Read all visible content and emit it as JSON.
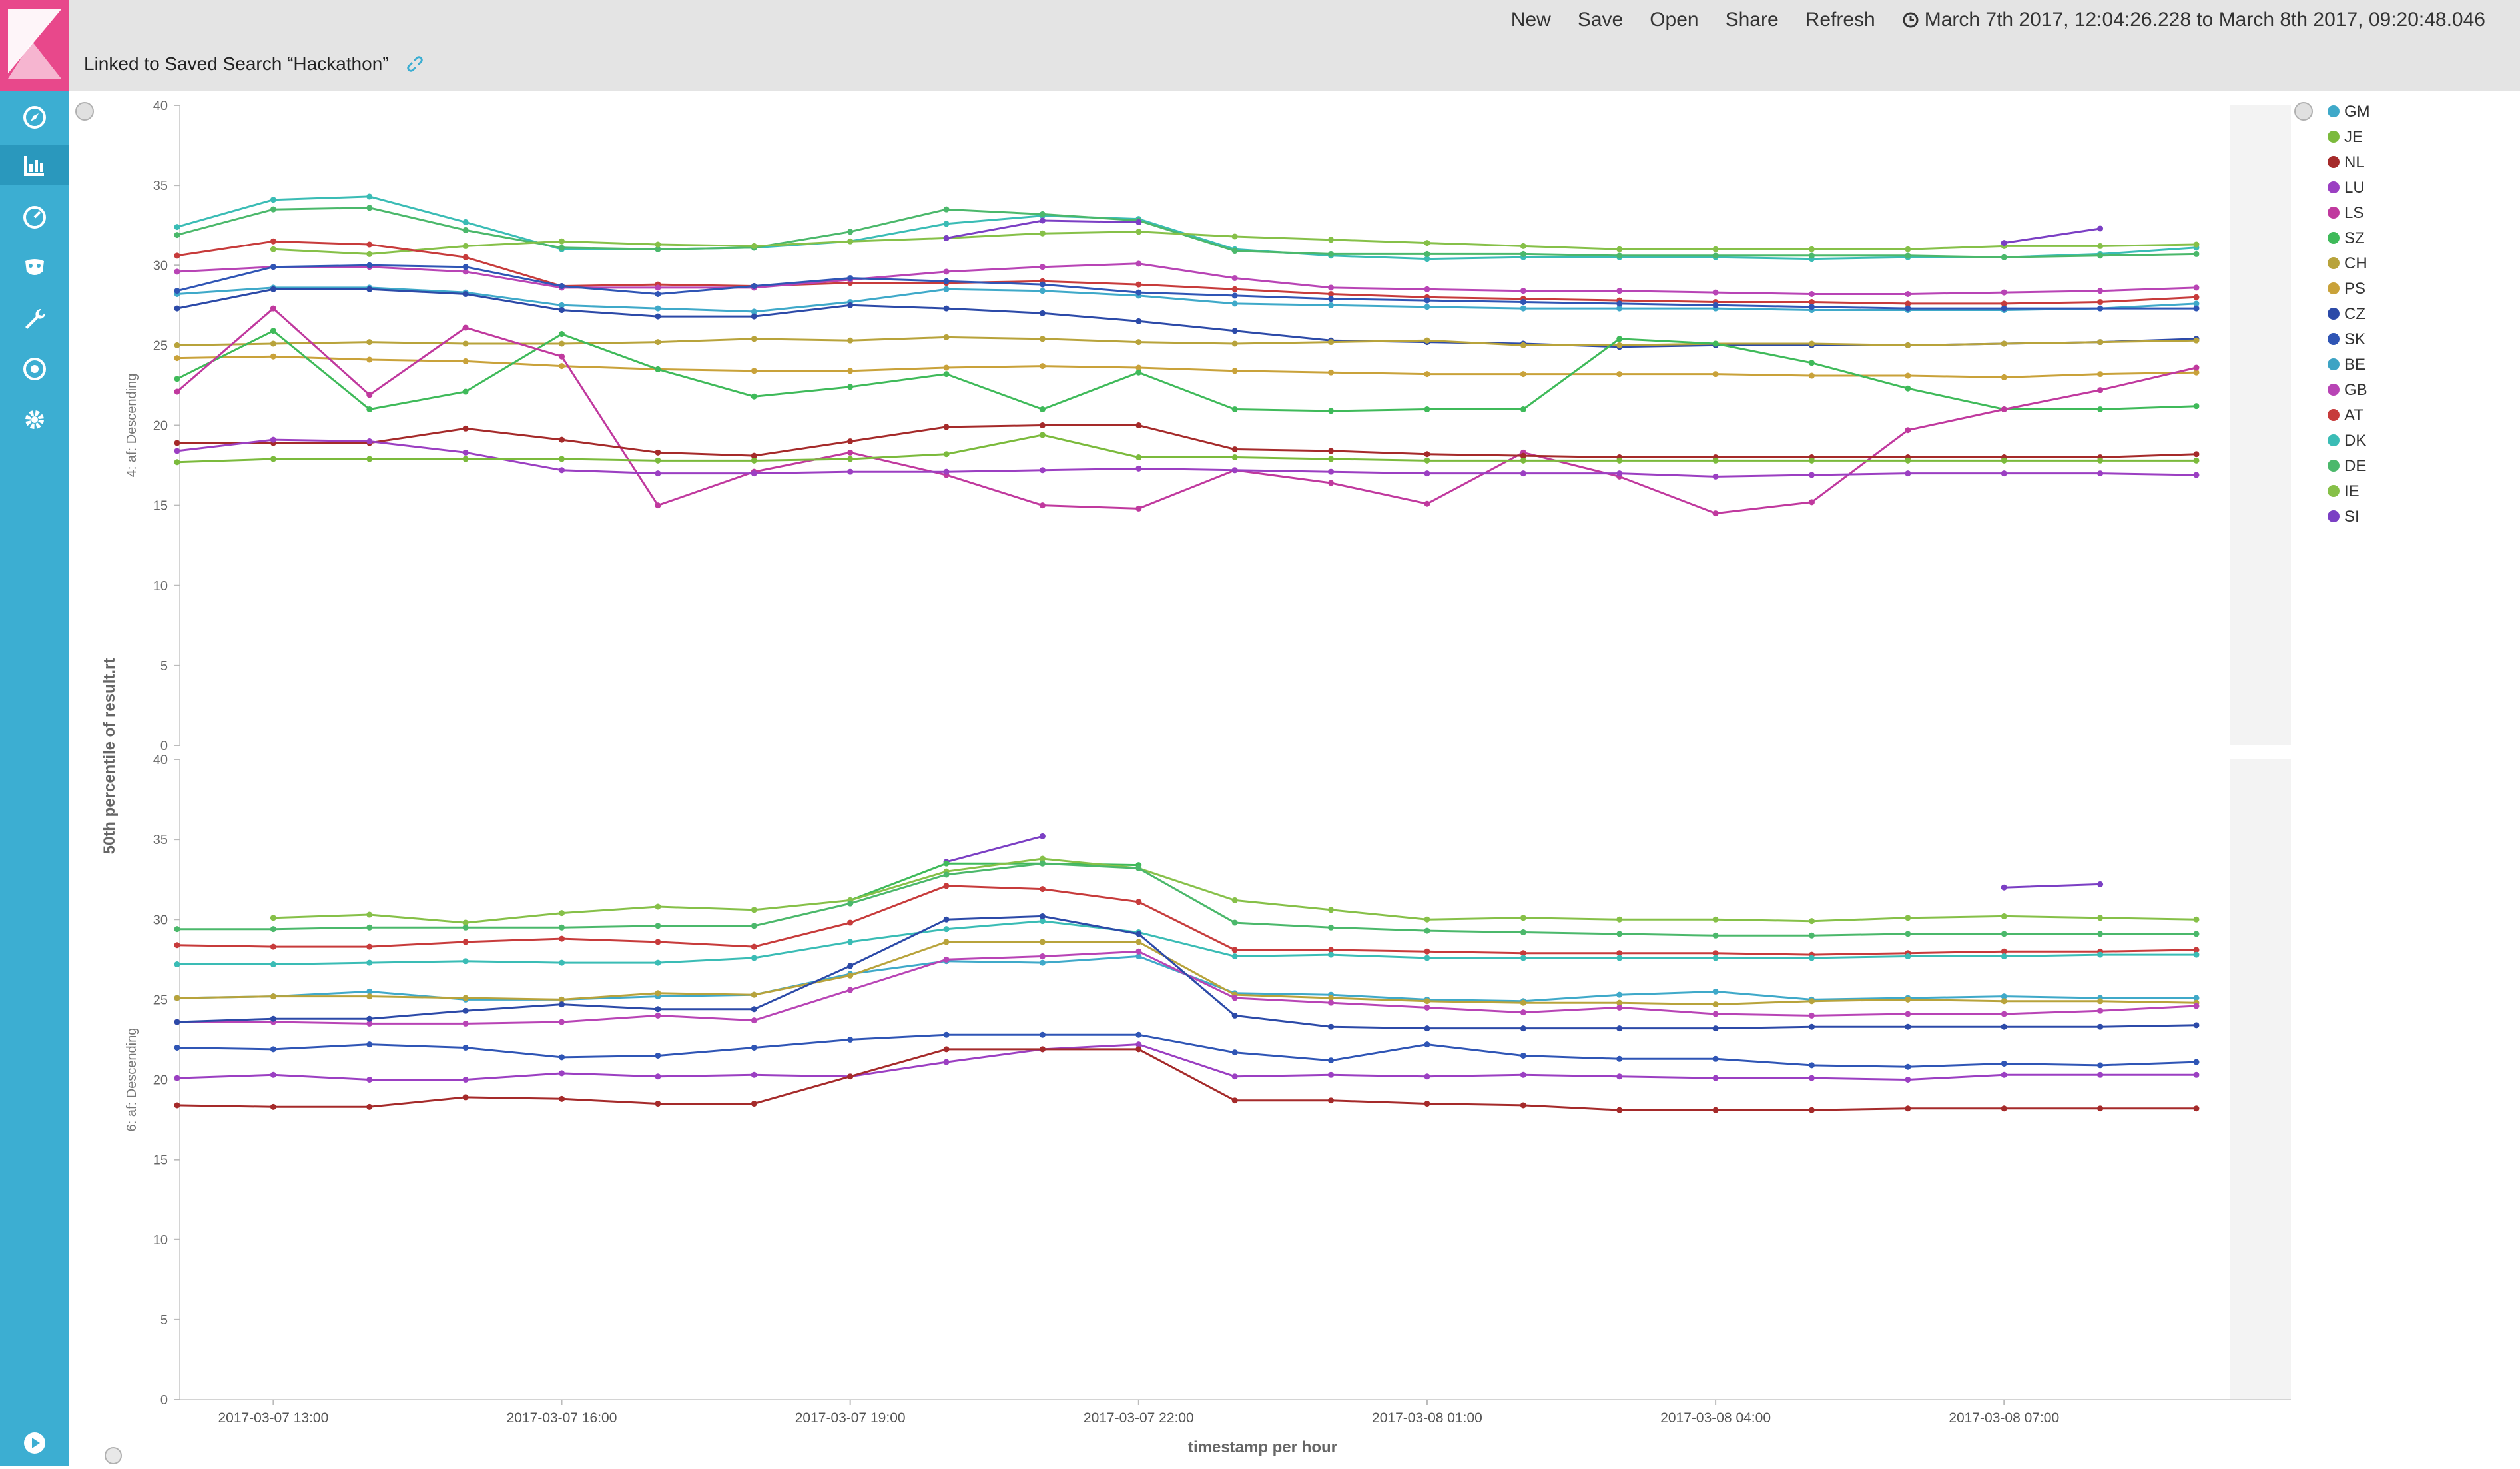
{
  "app": {
    "logo_icon": "kibana-logo-icon"
  },
  "nav": [
    {
      "name": "discover",
      "icon": "compass-icon"
    },
    {
      "name": "visualize",
      "icon": "bar-chart-icon",
      "active": true
    },
    {
      "name": "dashboard",
      "icon": "gauge-icon"
    },
    {
      "name": "timelion",
      "icon": "mask-icon"
    },
    {
      "name": "dev-tools",
      "icon": "wrench-icon"
    },
    {
      "name": "monitoring",
      "icon": "eye-icon"
    },
    {
      "name": "management",
      "icon": "gear-icon"
    }
  ],
  "top_menu": {
    "new": "New",
    "save": "Save",
    "open": "Open",
    "share": "Share",
    "refresh": "Refresh",
    "time_range": "March 7th 2017, 12:04:26.228 to March 8th 2017, 09:20:48.046"
  },
  "linked_search": {
    "text": "Linked to Saved Search “Hackathon”",
    "unlink_icon": "unlink-icon"
  },
  "chart_data": {
    "type": "line",
    "ylabel": "50th percentile of result.rt",
    "xlabel": "timestamp per hour",
    "x": [
      "2017-03-07 12:00",
      "2017-03-07 13:00",
      "2017-03-07 14:00",
      "2017-03-07 15:00",
      "2017-03-07 16:00",
      "2017-03-07 17:00",
      "2017-03-07 18:00",
      "2017-03-07 19:00",
      "2017-03-07 20:00",
      "2017-03-07 21:00",
      "2017-03-07 22:00",
      "2017-03-07 23:00",
      "2017-03-08 00:00",
      "2017-03-08 01:00",
      "2017-03-08 02:00",
      "2017-03-08 03:00",
      "2017-03-08 04:00",
      "2017-03-08 05:00",
      "2017-03-08 06:00",
      "2017-03-08 07:00",
      "2017-03-08 08:00",
      "2017-03-08 09:00"
    ],
    "x_ticks": [
      "2017-03-07 13:00",
      "2017-03-07 16:00",
      "2017-03-07 19:00",
      "2017-03-07 22:00",
      "2017-03-08 01:00",
      "2017-03-08 04:00",
      "2017-03-08 07:00"
    ],
    "ylim": [
      0,
      40
    ],
    "y_ticks": [
      "0",
      "5",
      "10",
      "15",
      "20",
      "25",
      "30",
      "35",
      "40"
    ],
    "legend": [
      {
        "name": "GM",
        "color": "#3fa9c9"
      },
      {
        "name": "JE",
        "color": "#7bba3c"
      },
      {
        "name": "NL",
        "color": "#a52a2a"
      },
      {
        "name": "LU",
        "color": "#9b3fc2"
      },
      {
        "name": "LS",
        "color": "#c0399e"
      },
      {
        "name": "SZ",
        "color": "#3fba5a"
      },
      {
        "name": "CH",
        "color": "#b8a33b"
      },
      {
        "name": "PS",
        "color": "#c9a23a"
      },
      {
        "name": "CZ",
        "color": "#2c4aa8"
      },
      {
        "name": "SK",
        "color": "#2f55b5"
      },
      {
        "name": "BE",
        "color": "#3da3c4"
      },
      {
        "name": "GB",
        "color": "#b844b5"
      },
      {
        "name": "AT",
        "color": "#c73b3b"
      },
      {
        "name": "DK",
        "color": "#3abcb5"
      },
      {
        "name": "DE",
        "color": "#4bb86b"
      },
      {
        "name": "IE",
        "color": "#86c048"
      },
      {
        "name": "SI",
        "color": "#7b3fc4"
      }
    ],
    "panels": [
      {
        "label": "4: af: Descending",
        "series": [
          {
            "color": "#3abcb5",
            "values": [
              32.4,
              34.1,
              34.3,
              32.7,
              31.0,
              31.0,
              31.1,
              31.5,
              32.6,
              33.1,
              32.9,
              31.0,
              30.6,
              30.4,
              30.5,
              30.5,
              30.5,
              30.4,
              30.5,
              30.5,
              30.7,
              31.1
            ]
          },
          {
            "color": "#4bb86b",
            "values": [
              31.9,
              33.5,
              33.6,
              32.2,
              31.1,
              31.0,
              31.1,
              32.1,
              33.5,
              33.2,
              32.8,
              30.9,
              30.7,
              30.7,
              30.7,
              30.6,
              30.6,
              30.6,
              30.6,
              30.5,
              30.6,
              30.7
            ]
          },
          {
            "color": "#86c048",
            "values": [
              null,
              31.0,
              30.7,
              31.2,
              31.5,
              31.3,
              31.2,
              31.5,
              31.7,
              32.0,
              32.1,
              31.8,
              31.6,
              31.4,
              31.2,
              31.0,
              31.0,
              31.0,
              31.0,
              31.2,
              31.2,
              31.3
            ]
          },
          {
            "color": "#7b3fc4",
            "values": [
              null,
              null,
              null,
              null,
              null,
              null,
              null,
              null,
              31.7,
              32.8,
              32.7,
              null,
              null,
              null,
              null,
              null,
              null,
              null,
              null,
              31.4,
              32.3,
              null
            ]
          },
          {
            "color": "#c73b3b",
            "values": [
              30.6,
              31.5,
              31.3,
              30.5,
              28.7,
              28.8,
              28.7,
              28.9,
              28.9,
              29.0,
              28.8,
              28.5,
              28.2,
              28.0,
              27.9,
              27.8,
              27.7,
              27.7,
              27.6,
              27.6,
              27.7,
              28.0
            ]
          },
          {
            "color": "#b844b5",
            "values": [
              29.6,
              29.9,
              29.9,
              29.6,
              28.6,
              28.6,
              28.6,
              29.1,
              29.6,
              29.9,
              30.1,
              29.2,
              28.6,
              28.5,
              28.4,
              28.4,
              28.3,
              28.2,
              28.2,
              28.3,
              28.4,
              28.6
            ]
          },
          {
            "color": "#3fa9c9",
            "values": [
              28.2,
              28.6,
              28.6,
              28.3,
              27.5,
              27.3,
              27.1,
              27.7,
              28.5,
              28.4,
              28.1,
              27.6,
              27.5,
              27.4,
              27.3,
              27.3,
              27.3,
              27.2,
              27.2,
              27.2,
              27.3,
              27.6
            ]
          },
          {
            "color": "#2c4aa8",
            "values": [
              27.3,
              28.5,
              28.5,
              28.2,
              27.2,
              26.8,
              26.8,
              27.5,
              27.3,
              27.0,
              26.5,
              25.9,
              25.3,
              25.2,
              25.1,
              24.9,
              25.0,
              25.0,
              25.0,
              25.1,
              25.2,
              25.4
            ]
          },
          {
            "color": "#2f55b5",
            "values": [
              28.4,
              29.9,
              30.0,
              29.9,
              28.7,
              28.2,
              28.7,
              29.2,
              29.0,
              28.8,
              28.3,
              28.1,
              27.9,
              27.8,
              27.7,
              27.6,
              27.5,
              27.4,
              27.3,
              27.3,
              27.3,
              27.3
            ]
          },
          {
            "color": "#b8a33b",
            "values": [
              25.0,
              25.1,
              25.2,
              25.1,
              25.1,
              25.2,
              25.4,
              25.3,
              25.5,
              25.4,
              25.2,
              25.1,
              25.2,
              25.3,
              25.0,
              25.0,
              25.1,
              25.1,
              25.0,
              25.1,
              25.2,
              25.3
            ]
          },
          {
            "color": "#c9a23a",
            "values": [
              24.2,
              24.3,
              24.1,
              24.0,
              23.7,
              23.5,
              23.4,
              23.4,
              23.6,
              23.7,
              23.6,
              23.4,
              23.3,
              23.2,
              23.2,
              23.2,
              23.2,
              23.1,
              23.1,
              23.0,
              23.2,
              23.3
            ]
          },
          {
            "color": "#3fba5a",
            "values": [
              22.9,
              25.9,
              21.0,
              22.1,
              25.7,
              23.5,
              21.8,
              22.4,
              23.2,
              21.0,
              23.3,
              21.0,
              20.9,
              21.0,
              21.0,
              25.4,
              25.1,
              23.9,
              22.3,
              21.0,
              21.0,
              21.2
            ]
          },
          {
            "color": "#c0399e",
            "values": [
              22.1,
              27.3,
              21.9,
              26.1,
              24.3,
              15.0,
              17.1,
              18.3,
              16.9,
              15.0,
              14.8,
              17.2,
              16.4,
              15.1,
              18.3,
              16.8,
              14.5,
              15.2,
              19.7,
              21.0,
              22.2,
              23.6
            ]
          },
          {
            "color": "#a52a2a",
            "values": [
              18.9,
              18.9,
              18.9,
              19.8,
              19.1,
              18.3,
              18.1,
              19.0,
              19.9,
              20.0,
              20.0,
              18.5,
              18.4,
              18.2,
              18.1,
              18.0,
              18.0,
              18.0,
              18.0,
              18.0,
              18.0,
              18.2
            ]
          },
          {
            "color": "#9b3fc2",
            "values": [
              18.4,
              19.1,
              19.0,
              18.3,
              17.2,
              17.0,
              17.0,
              17.1,
              17.1,
              17.2,
              17.3,
              17.2,
              17.1,
              17.0,
              17.0,
              17.0,
              16.8,
              16.9,
              17.0,
              17.0,
              17.0,
              16.9
            ]
          },
          {
            "color": "#7bba3c",
            "values": [
              17.7,
              17.9,
              17.9,
              17.9,
              17.9,
              17.8,
              17.8,
              17.9,
              18.2,
              19.4,
              18.0,
              18.0,
              17.9,
              17.8,
              17.8,
              17.8,
              17.8,
              17.8,
              17.8,
              17.8,
              17.8,
              17.8
            ]
          }
        ]
      },
      {
        "label": "6: af: Descending",
        "series": [
          {
            "color": "#7b3fc4",
            "values": [
              null,
              null,
              null,
              null,
              null,
              null,
              null,
              null,
              33.6,
              35.2,
              null,
              null,
              null,
              null,
              null,
              null,
              null,
              null,
              null,
              32.0,
              32.2,
              null
            ]
          },
          {
            "color": "#3fba5a",
            "values": [
              null,
              null,
              null,
              null,
              null,
              null,
              null,
              31.2,
              33.5,
              33.5,
              33.4,
              null,
              null,
              null,
              null,
              null,
              null,
              null,
              null,
              null,
              null,
              null
            ]
          },
          {
            "color": "#86c048",
            "values": [
              null,
              30.1,
              30.3,
              29.8,
              30.4,
              30.8,
              30.6,
              31.2,
              33.0,
              33.8,
              33.2,
              31.2,
              30.6,
              30.0,
              30.1,
              30.0,
              30.0,
              29.9,
              30.1,
              30.2,
              30.1,
              30.0
            ]
          },
          {
            "color": "#4bb86b",
            "values": [
              29.4,
              29.4,
              29.5,
              29.5,
              29.5,
              29.6,
              29.6,
              31.0,
              32.8,
              33.5,
              33.2,
              29.8,
              29.5,
              29.3,
              29.2,
              29.1,
              29.0,
              29.0,
              29.1,
              29.1,
              29.1,
              29.1
            ]
          },
          {
            "color": "#c73b3b",
            "values": [
              28.4,
              28.3,
              28.3,
              28.6,
              28.8,
              28.6,
              28.3,
              29.8,
              32.1,
              31.9,
              31.1,
              28.1,
              28.1,
              28.0,
              27.9,
              27.9,
              27.9,
              27.8,
              27.9,
              28.0,
              28.0,
              28.1
            ]
          },
          {
            "color": "#3abcb5",
            "values": [
              27.2,
              27.2,
              27.3,
              27.4,
              27.3,
              27.3,
              27.6,
              28.6,
              29.4,
              29.9,
              29.2,
              27.7,
              27.8,
              27.6,
              27.6,
              27.6,
              27.6,
              27.6,
              27.7,
              27.7,
              27.8,
              27.8
            ]
          },
          {
            "color": "#3fa9c9",
            "values": [
              25.1,
              25.2,
              25.5,
              25.0,
              25.0,
              25.2,
              25.3,
              26.6,
              27.4,
              27.3,
              27.7,
              25.4,
              25.3,
              25.0,
              24.9,
              25.3,
              25.5,
              25.0,
              25.1,
              25.2,
              25.1,
              25.1
            ]
          },
          {
            "color": "#b8a33b",
            "values": [
              25.1,
              25.2,
              25.2,
              25.1,
              25.0,
              25.4,
              25.3,
              26.5,
              28.6,
              28.6,
              28.6,
              25.3,
              25.1,
              24.9,
              24.8,
              24.8,
              24.7,
              24.9,
              25.0,
              24.9,
              24.9,
              24.8
            ]
          },
          {
            "color": "#b844b5",
            "values": [
              23.6,
              23.6,
              23.5,
              23.5,
              23.6,
              24.0,
              23.7,
              25.6,
              27.5,
              27.7,
              28.0,
              25.1,
              24.8,
              24.5,
              24.2,
              24.5,
              24.1,
              24.0,
              24.1,
              24.1,
              24.3,
              24.6
            ]
          },
          {
            "color": "#2c4aa8",
            "values": [
              23.6,
              23.8,
              23.8,
              24.3,
              24.7,
              24.4,
              24.4,
              27.1,
              30.0,
              30.2,
              29.1,
              24.0,
              23.3,
              23.2,
              23.2,
              23.2,
              23.2,
              23.3,
              23.3,
              23.3,
              23.3,
              23.4
            ]
          },
          {
            "color": "#2f55b5",
            "values": [
              22.0,
              21.9,
              22.2,
              22.0,
              21.4,
              21.5,
              22.0,
              22.5,
              22.8,
              22.8,
              22.8,
              21.7,
              21.2,
              22.2,
              21.5,
              21.3,
              21.3,
              20.9,
              20.8,
              21.0,
              20.9,
              21.1
            ]
          },
          {
            "color": "#9b3fc2",
            "values": [
              20.1,
              20.3,
              20.0,
              20.0,
              20.4,
              20.2,
              20.3,
              20.2,
              21.1,
              21.9,
              22.2,
              20.2,
              20.3,
              20.2,
              20.3,
              20.2,
              20.1,
              20.1,
              20.0,
              20.3,
              20.3,
              20.3
            ]
          },
          {
            "color": "#a52a2a",
            "values": [
              18.4,
              18.3,
              18.3,
              18.9,
              18.8,
              18.5,
              18.5,
              20.2,
              21.9,
              21.9,
              21.9,
              18.7,
              18.7,
              18.5,
              18.4,
              18.1,
              18.1,
              18.1,
              18.2,
              18.2,
              18.2,
              18.2
            ]
          }
        ]
      }
    ]
  }
}
